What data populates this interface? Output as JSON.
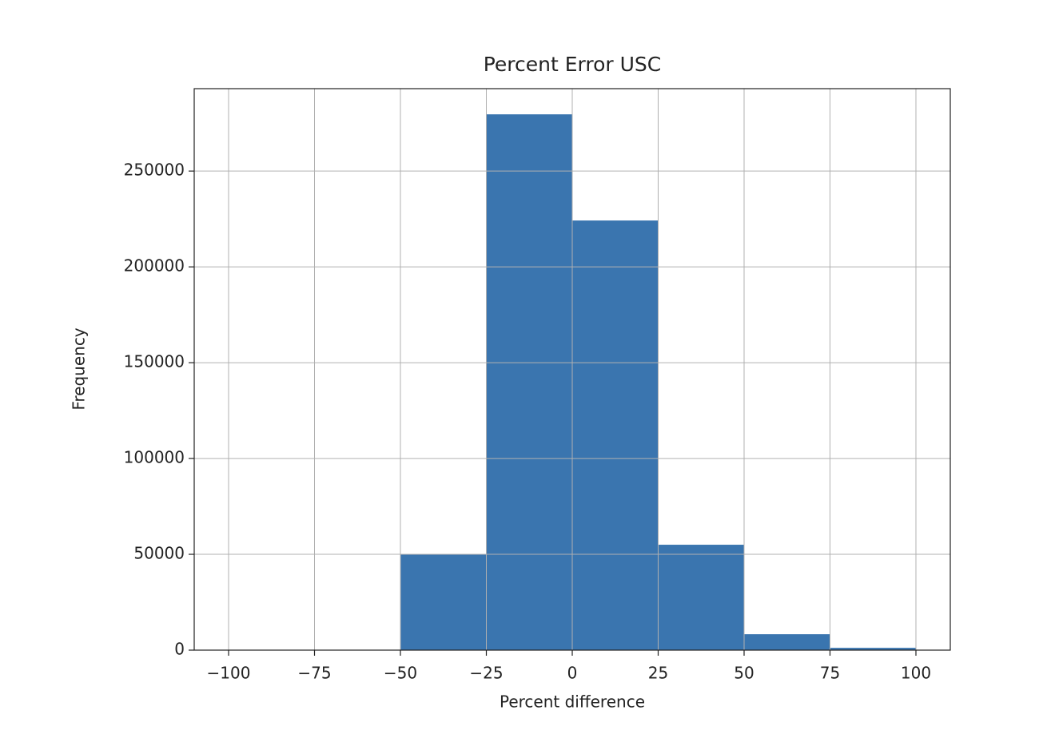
{
  "chart_data": {
    "type": "histogram",
    "title": "Percent Error USC",
    "xlabel": "Percent difference",
    "ylabel": "Frequency",
    "bins": [
      -100,
      -75,
      -50,
      -25,
      0,
      25,
      50,
      75,
      100
    ],
    "values": [
      0,
      0,
      50000,
      279600,
      224200,
      55000,
      8300,
      1200
    ],
    "color": "#3a75af",
    "xlim": [
      -110,
      110
    ],
    "ylim": [
      0,
      293000
    ],
    "xticks": [
      {
        "value": -100,
        "label": "−100"
      },
      {
        "value": -75,
        "label": "−75"
      },
      {
        "value": -50,
        "label": "−50"
      },
      {
        "value": -25,
        "label": "−25"
      },
      0,
      25,
      50,
      75,
      100
    ],
    "yticks": [
      0,
      50000,
      100000,
      150000,
      200000,
      250000
    ],
    "grid": true
  }
}
